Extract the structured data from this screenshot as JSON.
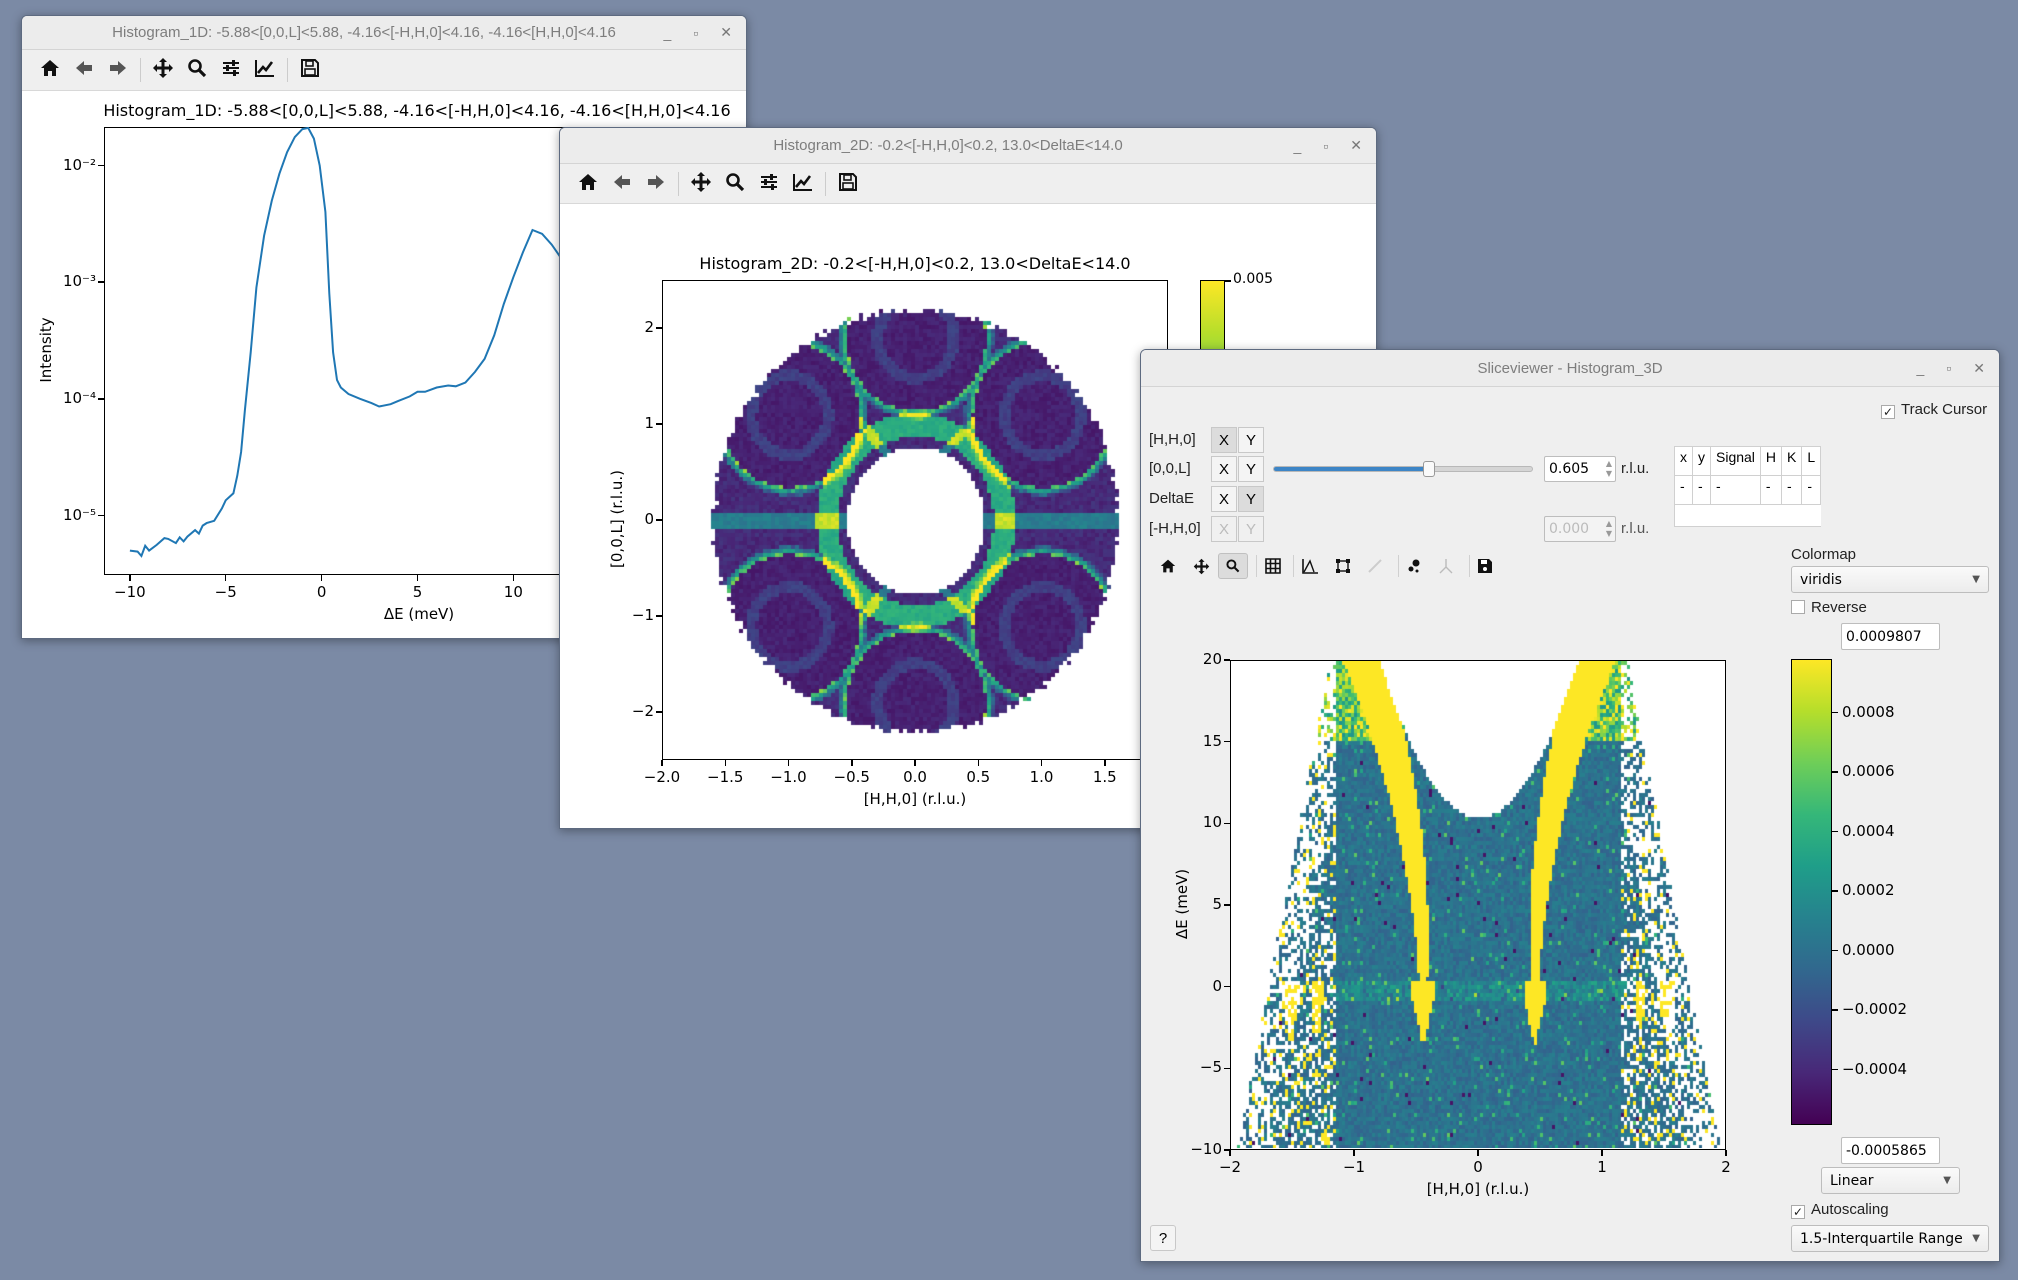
{
  "windows": {
    "hist1d": {
      "title": "Histogram_1D: -5.88<[0,0,L]<5.88, -4.16<[-H,H,0]<4.16, -4.16<[H,H,0]<4.16",
      "toolbar": [
        "home-icon",
        "back-icon",
        "forward-icon",
        "pan-icon",
        "zoom-icon",
        "subplots-icon",
        "customize-icon",
        "save-icon"
      ]
    },
    "hist2d": {
      "title": "Histogram_2D: -0.2<[-H,H,0]<0.2, 13.0<DeltaE<14.0",
      "toolbar": [
        "home-icon",
        "back-icon",
        "forward-icon",
        "pan-icon",
        "zoom-icon",
        "subplots-icon",
        "customize-icon",
        "save-icon"
      ]
    },
    "slice": {
      "title": "Sliceviewer - Histogram_3D",
      "track_cursor": "Track Cursor",
      "dims": [
        {
          "label": "[H,H,0]",
          "x": "X",
          "y": "Y",
          "state": "X"
        },
        {
          "label": "[0,0,L]",
          "x": "X",
          "y": "Y",
          "state": "slider",
          "value": "0.605",
          "unit": "r.l.u.",
          "slider_fraction": 0.6
        },
        {
          "label": "DeltaE",
          "x": "X",
          "y": "Y",
          "state": "Y"
        },
        {
          "label": "[-H,H,0]",
          "x": "X",
          "y": "Y",
          "state": "disabled",
          "value": "0.000",
          "unit": "r.l.u."
        }
      ],
      "info_table": {
        "headers": [
          "x",
          "y",
          "Signal",
          "H",
          "K",
          "L"
        ],
        "values": [
          "-",
          "-",
          "-",
          "-",
          "-",
          "-"
        ]
      },
      "colormap_label": "Colormap",
      "colormap": "viridis",
      "reverse_label": "Reverse",
      "cmax": "0.0009807",
      "cmin": "-0.0005865",
      "norm": "Linear",
      "autoscaling_label": "Autoscaling",
      "autoscale_mode": "1.5-Interquartile Range",
      "help": "?"
    }
  },
  "chart_data": [
    {
      "type": "line",
      "title": "Histogram_1D: -5.88<[0,0,L]<5.88, -4.16<[-H,H,0]<4.16, -4.16<[H,H,0]<4.16",
      "xlabel": "ΔE (meV)",
      "ylabel": "Intensity",
      "yscale": "log",
      "xlim": [
        -11.35,
        21.3
      ],
      "ylim_log10": [
        -5.51,
        -1.67
      ],
      "xticks": [
        {
          "v": -10,
          "label": "−10"
        },
        {
          "v": -5,
          "label": "−5"
        },
        {
          "v": 0,
          "label": "0"
        },
        {
          "v": 5,
          "label": "5"
        },
        {
          "v": 10,
          "label": "10"
        }
      ],
      "yticks": [
        {
          "v": -2,
          "label": "10⁻²"
        },
        {
          "v": -3,
          "label": "10⁻³"
        },
        {
          "v": -4,
          "label": "10⁻⁴"
        },
        {
          "v": -5,
          "label": "10⁻⁵"
        }
      ],
      "color": "#1f77b4",
      "x": [
        -10,
        -9.6,
        -9.4,
        -9.2,
        -9,
        -8.6,
        -8.2,
        -8,
        -7.6,
        -7.4,
        -7.2,
        -7,
        -6.6,
        -6.4,
        -6.2,
        -6,
        -5.6,
        -5.2,
        -5,
        -4.6,
        -4.4,
        -4.2,
        -4,
        -3.7,
        -3.4,
        -3,
        -2.6,
        -2.2,
        -1.8,
        -1.4,
        -1,
        -0.7,
        -0.4,
        -0.1,
        0.2,
        0.4,
        0.6,
        0.8,
        1,
        1.4,
        2,
        2.6,
        3,
        3.6,
        4,
        4.6,
        5,
        5.4,
        6,
        6.6,
        7,
        7.5,
        8,
        8.5,
        9,
        9.5,
        10,
        10.5,
        11,
        11.5,
        12,
        12.5,
        13
      ],
      "y": [
        5e-06,
        4.9e-06,
        4.5e-06,
        5.5e-06,
        5e-06,
        5.6e-06,
        6.4e-06,
        6.3e-06,
        5.8e-06,
        6.5e-06,
        6e-06,
        6.6e-06,
        7.5e-06,
        7e-06,
        8.2e-06,
        8.6e-06,
        9e-06,
        1.15e-05,
        1.35e-05,
        1.55e-05,
        2.2e-05,
        3.5e-05,
        8e-05,
        0.00025,
        0.0009,
        0.0025,
        0.005,
        0.0085,
        0.013,
        0.0175,
        0.0205,
        0.021,
        0.017,
        0.01,
        0.004,
        0.0008,
        0.00025,
        0.000145,
        0.000125,
        0.00011,
        0.0001,
        9.2e-05,
        8.6e-05,
        9e-05,
        9.6e-05,
        0.000105,
        0.000115,
        0.000115,
        0.000125,
        0.00013,
        0.000128,
        0.000138,
        0.00017,
        0.00022,
        0.00035,
        0.00065,
        0.0011,
        0.0018,
        0.0028,
        0.0026,
        0.0021,
        0.0016,
        0.0012
      ]
    },
    {
      "type": "heatmap",
      "title": "Histogram_2D: -0.2<[-H,H,0]<0.2, 13.0<DeltaE<14.0",
      "xlabel": "[H,H,0] (r.l.u.)",
      "ylabel": "[0,0,L] (r.l.u.)",
      "xlim": [
        -2,
        2
      ],
      "ylim": [
        -2.5,
        2.5
      ],
      "xticks": [
        {
          "v": -2,
          "label": "−2.0"
        },
        {
          "v": -1.5,
          "label": "−1.5"
        },
        {
          "v": -1,
          "label": "−1.0"
        },
        {
          "v": -0.5,
          "label": "−0.5"
        },
        {
          "v": 0,
          "label": "0.0"
        },
        {
          "v": 0.5,
          "label": "0.5"
        },
        {
          "v": 1,
          "label": "1.0"
        },
        {
          "v": 1.5,
          "label": "1.5"
        }
      ],
      "yticks": [
        {
          "v": 2,
          "label": "2"
        },
        {
          "v": 1,
          "label": "1"
        },
        {
          "v": 0,
          "label": "0"
        },
        {
          "v": -1,
          "label": "−1"
        },
        {
          "v": -2,
          "label": "−2"
        }
      ],
      "ring": {
        "outer_rx": 1.6,
        "outer_ry": 2.2,
        "inner_rx": 0.54,
        "inner_ry": 0.77
      },
      "colorbar": {
        "colormap": "viridis",
        "max_label": "0.005"
      }
    },
    {
      "type": "heatmap",
      "xlabel": "[H,H,0] (r.l.u.)",
      "ylabel": "ΔE (meV)",
      "xlim": [
        -2,
        2
      ],
      "ylim": [
        -10,
        20
      ],
      "xticks": [
        {
          "v": -2,
          "label": "−2"
        },
        {
          "v": -1,
          "label": "−1"
        },
        {
          "v": 0,
          "label": "0"
        },
        {
          "v": 1,
          "label": "1"
        },
        {
          "v": 2,
          "label": "2"
        }
      ],
      "yticks": [
        {
          "v": 20,
          "label": "20"
        },
        {
          "v": 15,
          "label": "15"
        },
        {
          "v": 10,
          "label": "10"
        },
        {
          "v": 5,
          "label": "5"
        },
        {
          "v": 0,
          "label": "0"
        },
        {
          "v": -5,
          "label": "−5"
        },
        {
          "v": -10,
          "label": "−10"
        }
      ],
      "colorbar": {
        "colormap": "viridis",
        "vmin": -0.0005865,
        "vmax": 0.0009807,
        "ticks": [
          {
            "v": 0.0008,
            "label": "0.0008"
          },
          {
            "v": 0.0006,
            "label": "0.0006"
          },
          {
            "v": 0.0004,
            "label": "0.0004"
          },
          {
            "v": 0.0002,
            "label": "0.0002"
          },
          {
            "v": 0,
            "label": "0.0000"
          },
          {
            "v": -0.0002,
            "label": "−0.0002"
          },
          {
            "v": -0.0004,
            "label": "−0.0004"
          }
        ]
      }
    }
  ]
}
